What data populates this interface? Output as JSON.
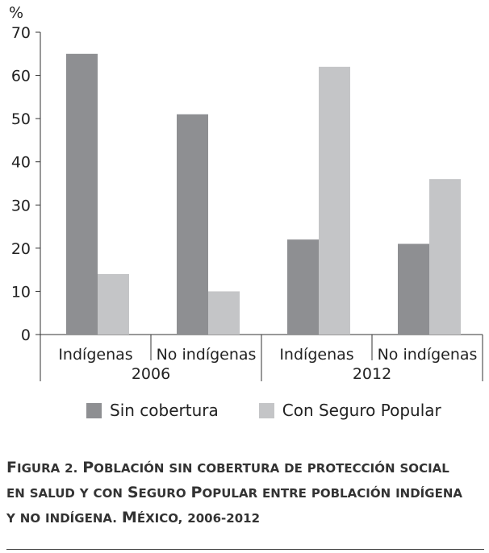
{
  "chart_data": {
    "type": "bar",
    "ylabel": "%",
    "ylim": [
      0,
      70
    ],
    "yticks": [
      0,
      10,
      20,
      30,
      40,
      50,
      60,
      70
    ],
    "groups": [
      {
        "year": "2006",
        "categories": [
          "Indígenas",
          "No indígenas"
        ]
      },
      {
        "year": "2012",
        "categories": [
          "Indígenas",
          "No indígenas"
        ]
      }
    ],
    "categories": [
      "Indígenas",
      "No indígenas",
      "Indígenas",
      "No indígenas"
    ],
    "series": [
      {
        "name": "Sin cobertura",
        "color": "#8e8f92",
        "values": [
          65,
          51,
          22,
          21
        ]
      },
      {
        "name": "Con Seguro Popular",
        "color": "#c4c5c7",
        "values": [
          14,
          10,
          62,
          36
        ]
      }
    ],
    "grid": false,
    "legend_position": "bottom"
  },
  "legend": {
    "items": [
      {
        "label": "Sin cobertura",
        "color": "#8e8f92"
      },
      {
        "label": "Con Seguro Popular",
        "color": "#c4c5c7"
      }
    ]
  },
  "caption": {
    "line1": "Figura 2. Población sin cobertura de protección social",
    "line2": "en salud y con Seguro Popular entre población indígena",
    "line3": "y no indígena. México, 2006-2012"
  }
}
